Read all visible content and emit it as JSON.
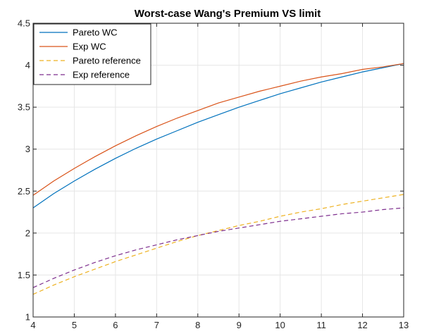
{
  "chart_data": {
    "type": "line",
    "title": "Worst-case Wang's Premium VS limit",
    "xlabel": "",
    "ylabel": "",
    "xlim": [
      4,
      13
    ],
    "ylim": [
      1,
      4.5
    ],
    "xticks": [
      "4",
      "5",
      "6",
      "7",
      "8",
      "9",
      "10",
      "11",
      "12",
      "13"
    ],
    "yticks": [
      "1",
      "1.5",
      "2",
      "2.5",
      "3",
      "3.5",
      "4",
      "4.5"
    ],
    "grid": true,
    "legend_position": "top-left",
    "x": [
      4,
      4.5,
      5,
      5.5,
      6,
      6.5,
      7,
      7.5,
      8,
      8.5,
      9,
      9.5,
      10,
      10.5,
      11,
      11.5,
      12,
      12.5,
      13
    ],
    "series": [
      {
        "name": "Pareto WC",
        "color": "#0072BD",
        "dash": "solid",
        "values": [
          2.3,
          2.47,
          2.62,
          2.76,
          2.89,
          3.01,
          3.12,
          3.22,
          3.32,
          3.41,
          3.5,
          3.58,
          3.66,
          3.73,
          3.8,
          3.86,
          3.92,
          3.97,
          4.02
        ]
      },
      {
        "name": "Exp WC",
        "color": "#D95319",
        "dash": "solid",
        "values": [
          2.45,
          2.62,
          2.77,
          2.91,
          3.04,
          3.16,
          3.27,
          3.37,
          3.46,
          3.55,
          3.62,
          3.69,
          3.75,
          3.81,
          3.86,
          3.9,
          3.95,
          3.98,
          4.02
        ]
      },
      {
        "name": "Pareto reference",
        "color": "#EDB120",
        "dash": "dashed",
        "values": [
          1.27,
          1.38,
          1.48,
          1.57,
          1.66,
          1.74,
          1.82,
          1.9,
          1.97,
          2.03,
          2.09,
          2.14,
          2.2,
          2.25,
          2.29,
          2.34,
          2.38,
          2.42,
          2.46
        ]
      },
      {
        "name": "Exp reference",
        "color": "#7E2F8E",
        "dash": "dashed",
        "values": [
          1.35,
          1.46,
          1.56,
          1.65,
          1.73,
          1.8,
          1.86,
          1.92,
          1.97,
          2.02,
          2.06,
          2.1,
          2.14,
          2.17,
          2.2,
          2.23,
          2.25,
          2.28,
          2.3
        ]
      }
    ]
  }
}
